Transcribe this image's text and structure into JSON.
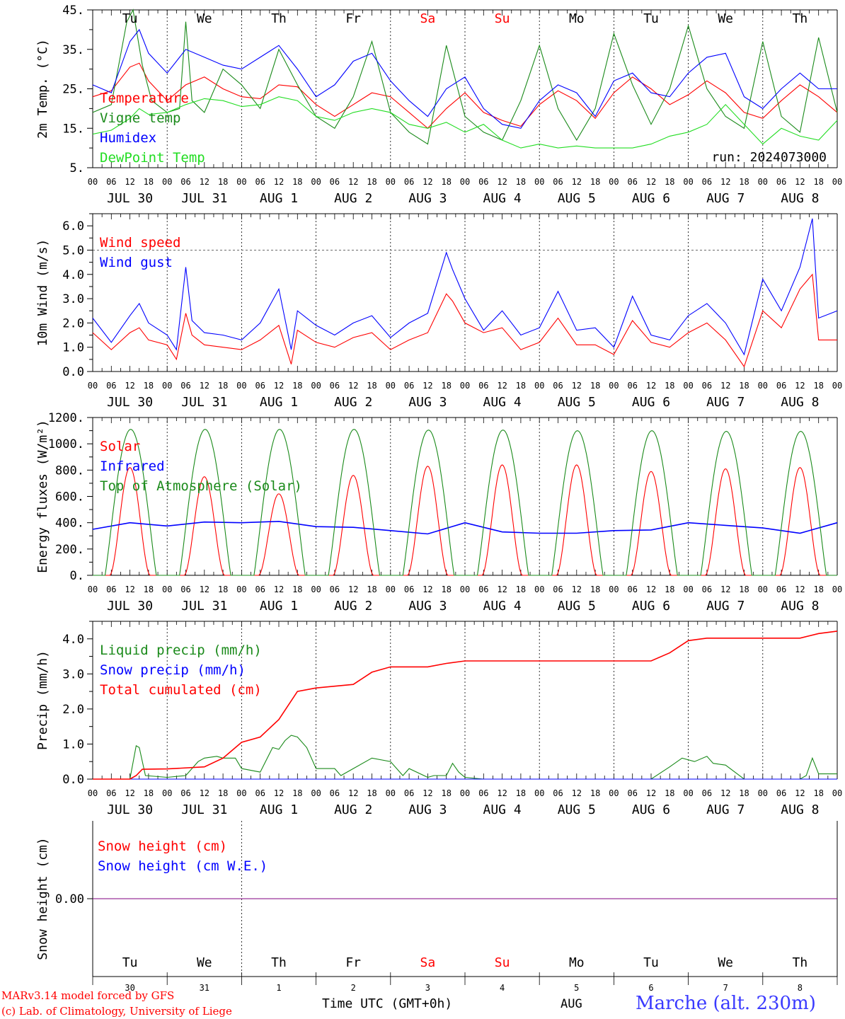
{
  "colors": {
    "red": "#ff0000",
    "darkgreen": "#1a8a1a",
    "blue": "#0000ff",
    "lightgreen": "#22dd22",
    "purple": "#800080",
    "grey": "#777777"
  },
  "day_labels": [
    "Tu",
    "We",
    "Th",
    "Fr",
    "Sa",
    "Su",
    "Mo",
    "Tu",
    "We",
    "Th"
  ],
  "weekend_days": [
    4,
    5
  ],
  "date_labels": [
    "JUL 30",
    "JUL 31",
    "AUG  1",
    "AUG  2",
    "AUG  3",
    "AUG  4",
    "AUG  5",
    "AUG  6",
    "AUG  7",
    "AUG  8"
  ],
  "hour_labels": [
    "00",
    "06",
    "12",
    "18"
  ],
  "hour_end_label": "00",
  "bottom_day_numbers": [
    "30",
    "31",
    "1",
    "2",
    "3",
    "4",
    "5",
    "6",
    "7",
    "8"
  ],
  "bottom_month": "AUG",
  "xlabel": "Time UTC (GMT+0h)",
  "location": "Marche (alt. 230m)",
  "credits": [
    "MARv3.14 model forced by GFS",
    "(c) Lab. of Climatology, University of Liege"
  ],
  "run_label": "run: 2024073000",
  "chart_data": [
    {
      "type": "line",
      "ylabel": "2m Temp. (°C)",
      "ylim": [
        5,
        45
      ],
      "y_ticks": [
        "45.",
        "35.",
        "25.",
        "15.",
        "5."
      ],
      "x_unit": "hours since 2024-07-30 00 UTC",
      "series": [
        {
          "name": "Temperature",
          "color": "red",
          "x": [
            0,
            6,
            12,
            15,
            18,
            24,
            30,
            36,
            42,
            48,
            54,
            60,
            66,
            72,
            78,
            84,
            90,
            96,
            102,
            108,
            114,
            120,
            126,
            132,
            138,
            144,
            150,
            156,
            162,
            168,
            174,
            180,
            186,
            192,
            198,
            204,
            210,
            216,
            222,
            228,
            234,
            240
          ],
          "y": [
            23,
            24.5,
            30.5,
            31.5,
            27,
            22,
            26,
            28,
            25,
            23,
            22.5,
            26,
            25.5,
            21,
            18,
            21,
            24,
            23,
            19,
            15,
            20,
            24,
            19,
            17,
            15.5,
            21,
            24.5,
            22,
            17.5,
            24,
            28,
            25,
            21,
            23.5,
            27,
            24,
            19,
            17.5,
            22,
            26,
            23,
            19
          ]
        },
        {
          "name": "Vigne temp",
          "color": "darkgreen",
          "x": [
            0,
            6,
            11,
            13,
            16,
            19,
            24,
            28,
            30,
            32,
            36,
            42,
            48,
            54,
            60,
            66,
            72,
            78,
            84,
            90,
            96,
            102,
            108,
            114,
            120,
            126,
            132,
            138,
            144,
            150,
            156,
            162,
            168,
            174,
            180,
            186,
            192,
            198,
            204,
            210,
            216,
            222,
            228,
            234,
            240
          ],
          "y": [
            19,
            21,
            42,
            45,
            31,
            22,
            19,
            20,
            42,
            22,
            19,
            30,
            26,
            20,
            35,
            26,
            18,
            15,
            23,
            37,
            19,
            14,
            11,
            36,
            18,
            14,
            12,
            22,
            36,
            20,
            12,
            20,
            39,
            26,
            16,
            25,
            41,
            25,
            18,
            15,
            37,
            18,
            14,
            38,
            19
          ]
        },
        {
          "name": "Humidex",
          "color": "blue",
          "x": [
            0,
            6,
            12,
            15,
            18,
            24,
            30,
            36,
            42,
            48,
            54,
            60,
            66,
            72,
            78,
            84,
            90,
            96,
            102,
            108,
            114,
            120,
            126,
            132,
            138,
            144,
            150,
            156,
            162,
            168,
            174,
            180,
            186,
            192,
            198,
            204,
            210,
            216,
            222,
            228,
            234,
            240
          ],
          "y": [
            26,
            24,
            37,
            40,
            34,
            29,
            35,
            33,
            31,
            30,
            33,
            36,
            30,
            23,
            26,
            32,
            34,
            27,
            22,
            18,
            25,
            28,
            20,
            16,
            15,
            22,
            26,
            24,
            18,
            27,
            29,
            24,
            23,
            29,
            33,
            34,
            23,
            20,
            25,
            29,
            25,
            25
          ]
        },
        {
          "name": "DewPoint Temp",
          "color": "lightgreen",
          "x": [
            0,
            6,
            12,
            15,
            18,
            24,
            30,
            36,
            42,
            48,
            54,
            60,
            66,
            72,
            78,
            84,
            90,
            96,
            102,
            108,
            114,
            120,
            126,
            132,
            138,
            144,
            150,
            156,
            162,
            168,
            174,
            180,
            186,
            192,
            198,
            204,
            210,
            216,
            222,
            228,
            234,
            240
          ],
          "y": [
            13.5,
            14.5,
            17.5,
            20,
            18.5,
            19,
            21,
            22.5,
            22,
            20.5,
            21,
            23,
            22,
            18,
            17,
            19,
            20,
            19,
            16,
            15,
            16.5,
            14,
            16,
            12,
            10,
            11,
            10,
            10.5,
            10,
            10,
            10,
            11,
            13,
            14,
            16,
            21,
            16,
            11,
            15,
            13,
            12,
            17
          ]
        }
      ]
    },
    {
      "type": "line",
      "ylabel": "10m Wind (m/s)",
      "ylim": [
        0,
        6.5
      ],
      "y_ticks": [
        "6.0",
        "5.0",
        "4.0",
        "3.0",
        "2.0",
        "1.0",
        "0.0"
      ],
      "reference_line": 5.0,
      "series": [
        {
          "name": "Wind speed",
          "color": "red",
          "x": [
            0,
            6,
            12,
            15,
            18,
            24,
            27,
            30,
            32,
            36,
            42,
            48,
            54,
            60,
            64,
            66,
            72,
            78,
            84,
            90,
            96,
            102,
            108,
            114,
            116,
            120,
            126,
            132,
            138,
            144,
            150,
            156,
            162,
            168,
            174,
            180,
            186,
            192,
            198,
            204,
            210,
            216,
            222,
            228,
            232,
            234,
            240
          ],
          "y": [
            1.6,
            0.9,
            1.6,
            1.8,
            1.3,
            1.1,
            0.5,
            2.4,
            1.5,
            1.1,
            1.0,
            0.9,
            1.3,
            1.9,
            0.3,
            1.7,
            1.2,
            1.0,
            1.4,
            1.6,
            0.9,
            1.3,
            1.6,
            3.2,
            2.9,
            2.0,
            1.6,
            1.8,
            0.9,
            1.2,
            2.2,
            1.1,
            1.1,
            0.7,
            2.1,
            1.2,
            1.0,
            1.6,
            2.0,
            1.3,
            0.2,
            2.5,
            1.8,
            3.4,
            4.0,
            1.3,
            1.3
          ]
        },
        {
          "name": "Wind gust",
          "color": "blue",
          "x": [
            0,
            6,
            12,
            15,
            18,
            24,
            27,
            30,
            32,
            36,
            42,
            48,
            54,
            60,
            64,
            66,
            72,
            78,
            84,
            90,
            96,
            102,
            108,
            114,
            116,
            120,
            126,
            132,
            138,
            144,
            150,
            156,
            162,
            168,
            174,
            180,
            186,
            192,
            198,
            204,
            210,
            216,
            222,
            228,
            232,
            234,
            240
          ],
          "y": [
            2.2,
            1.2,
            2.3,
            2.8,
            2.0,
            1.5,
            0.9,
            4.3,
            2.1,
            1.6,
            1.5,
            1.3,
            2.0,
            3.4,
            0.9,
            2.5,
            1.9,
            1.5,
            2.0,
            2.3,
            1.4,
            2.0,
            2.4,
            4.9,
            4.2,
            3.0,
            1.7,
            2.5,
            1.5,
            1.8,
            3.3,
            1.7,
            1.8,
            1.0,
            3.1,
            1.5,
            1.3,
            2.3,
            2.8,
            2.0,
            0.7,
            3.8,
            2.5,
            4.3,
            6.3,
            2.2,
            2.5
          ]
        }
      ]
    },
    {
      "type": "line",
      "ylabel": "Energy fluxes (W/m²)",
      "ylim": [
        0,
        1200
      ],
      "y_ticks": [
        "1200.",
        "1000.",
        "800.",
        "600.",
        "400.",
        "200.",
        "0."
      ],
      "series": [
        {
          "name": "Solar",
          "color": "red",
          "peaks": [
            820,
            750,
            620,
            760,
            830,
            840,
            840,
            790,
            810,
            820
          ]
        },
        {
          "name": "Infrared",
          "color": "blue",
          "x": [
            0,
            12,
            24,
            36,
            48,
            60,
            72,
            84,
            96,
            108,
            120,
            132,
            144,
            156,
            168,
            180,
            192,
            204,
            216,
            228,
            240
          ],
          "y": [
            350,
            400,
            375,
            405,
            400,
            410,
            370,
            365,
            340,
            315,
            400,
            330,
            320,
            320,
            340,
            345,
            400,
            380,
            360,
            320,
            400
          ]
        },
        {
          "name": "Top of Atmosphere (Solar)",
          "color": "darkgreen",
          "peaks": [
            1110,
            1110,
            1110,
            1110,
            1105,
            1105,
            1100,
            1100,
            1095,
            1095
          ]
        }
      ]
    },
    {
      "type": "line",
      "ylabel": "Precip (mm/h)",
      "ylim": [
        0,
        4.5
      ],
      "y_ticks": [
        "4.0",
        "3.0",
        "2.0",
        "1.0",
        "0.0"
      ],
      "series": [
        {
          "name": "Liquid precip (mm/h)",
          "color": "darkgreen",
          "x": [
            0,
            12,
            14,
            15,
            17,
            24,
            30,
            34,
            36,
            40,
            42,
            46,
            48,
            54,
            58,
            60,
            62,
            64,
            66,
            69,
            72,
            78,
            80,
            84,
            90,
            96,
            100,
            102,
            108,
            110,
            114,
            116,
            118,
            120,
            126,
            132,
            144,
            156,
            180,
            186,
            190,
            194,
            198,
            200,
            204,
            210,
            216,
            228,
            230,
            232,
            234,
            240
          ],
          "y": [
            0,
            0,
            0.95,
            0.9,
            0.1,
            0.05,
            0.1,
            0.5,
            0.6,
            0.65,
            0.6,
            0.6,
            0.3,
            0.2,
            0.9,
            0.85,
            1.1,
            1.25,
            1.2,
            0.9,
            0.3,
            0.3,
            0.1,
            0.3,
            0.6,
            0.5,
            0.1,
            0.3,
            0.05,
            0.1,
            0.1,
            0.45,
            0.2,
            0.05,
            0,
            0,
            0,
            0,
            0,
            0.35,
            0.6,
            0.5,
            0.65,
            0.45,
            0.4,
            0,
            0,
            0,
            0.1,
            0.6,
            0.15,
            0.15
          ]
        },
        {
          "name": "Snow precip (mm/h)",
          "color": "blue",
          "x": [
            0,
            240
          ],
          "y": [
            0,
            0
          ]
        },
        {
          "name": "Total cumulated (cm)",
          "color": "red",
          "x": [
            0,
            12,
            14,
            16,
            24,
            36,
            42,
            48,
            54,
            60,
            66,
            72,
            78,
            84,
            90,
            96,
            102,
            108,
            114,
            120,
            126,
            144,
            168,
            180,
            186,
            192,
            198,
            222,
            228,
            234,
            240
          ],
          "y": [
            0,
            0,
            0.1,
            0.28,
            0.29,
            0.35,
            0.6,
            1.05,
            1.2,
            1.7,
            2.5,
            2.6,
            2.65,
            2.7,
            3.05,
            3.2,
            3.2,
            3.2,
            3.3,
            3.37,
            3.37,
            3.37,
            3.37,
            3.37,
            3.6,
            3.95,
            4.02,
            4.02,
            4.02,
            4.15,
            4.22
          ]
        }
      ]
    },
    {
      "type": "line",
      "ylabel": "Snow height (cm)",
      "y_ticks": [
        "0.00"
      ],
      "series": [
        {
          "name": "Snow height (cm)",
          "color": "red",
          "x": [
            0,
            240
          ],
          "y": [
            0,
            0
          ]
        },
        {
          "name": "Snow height (cm W.E.)",
          "color": "blue",
          "x": [
            0,
            240
          ],
          "y": [
            0,
            0
          ]
        }
      ]
    }
  ]
}
